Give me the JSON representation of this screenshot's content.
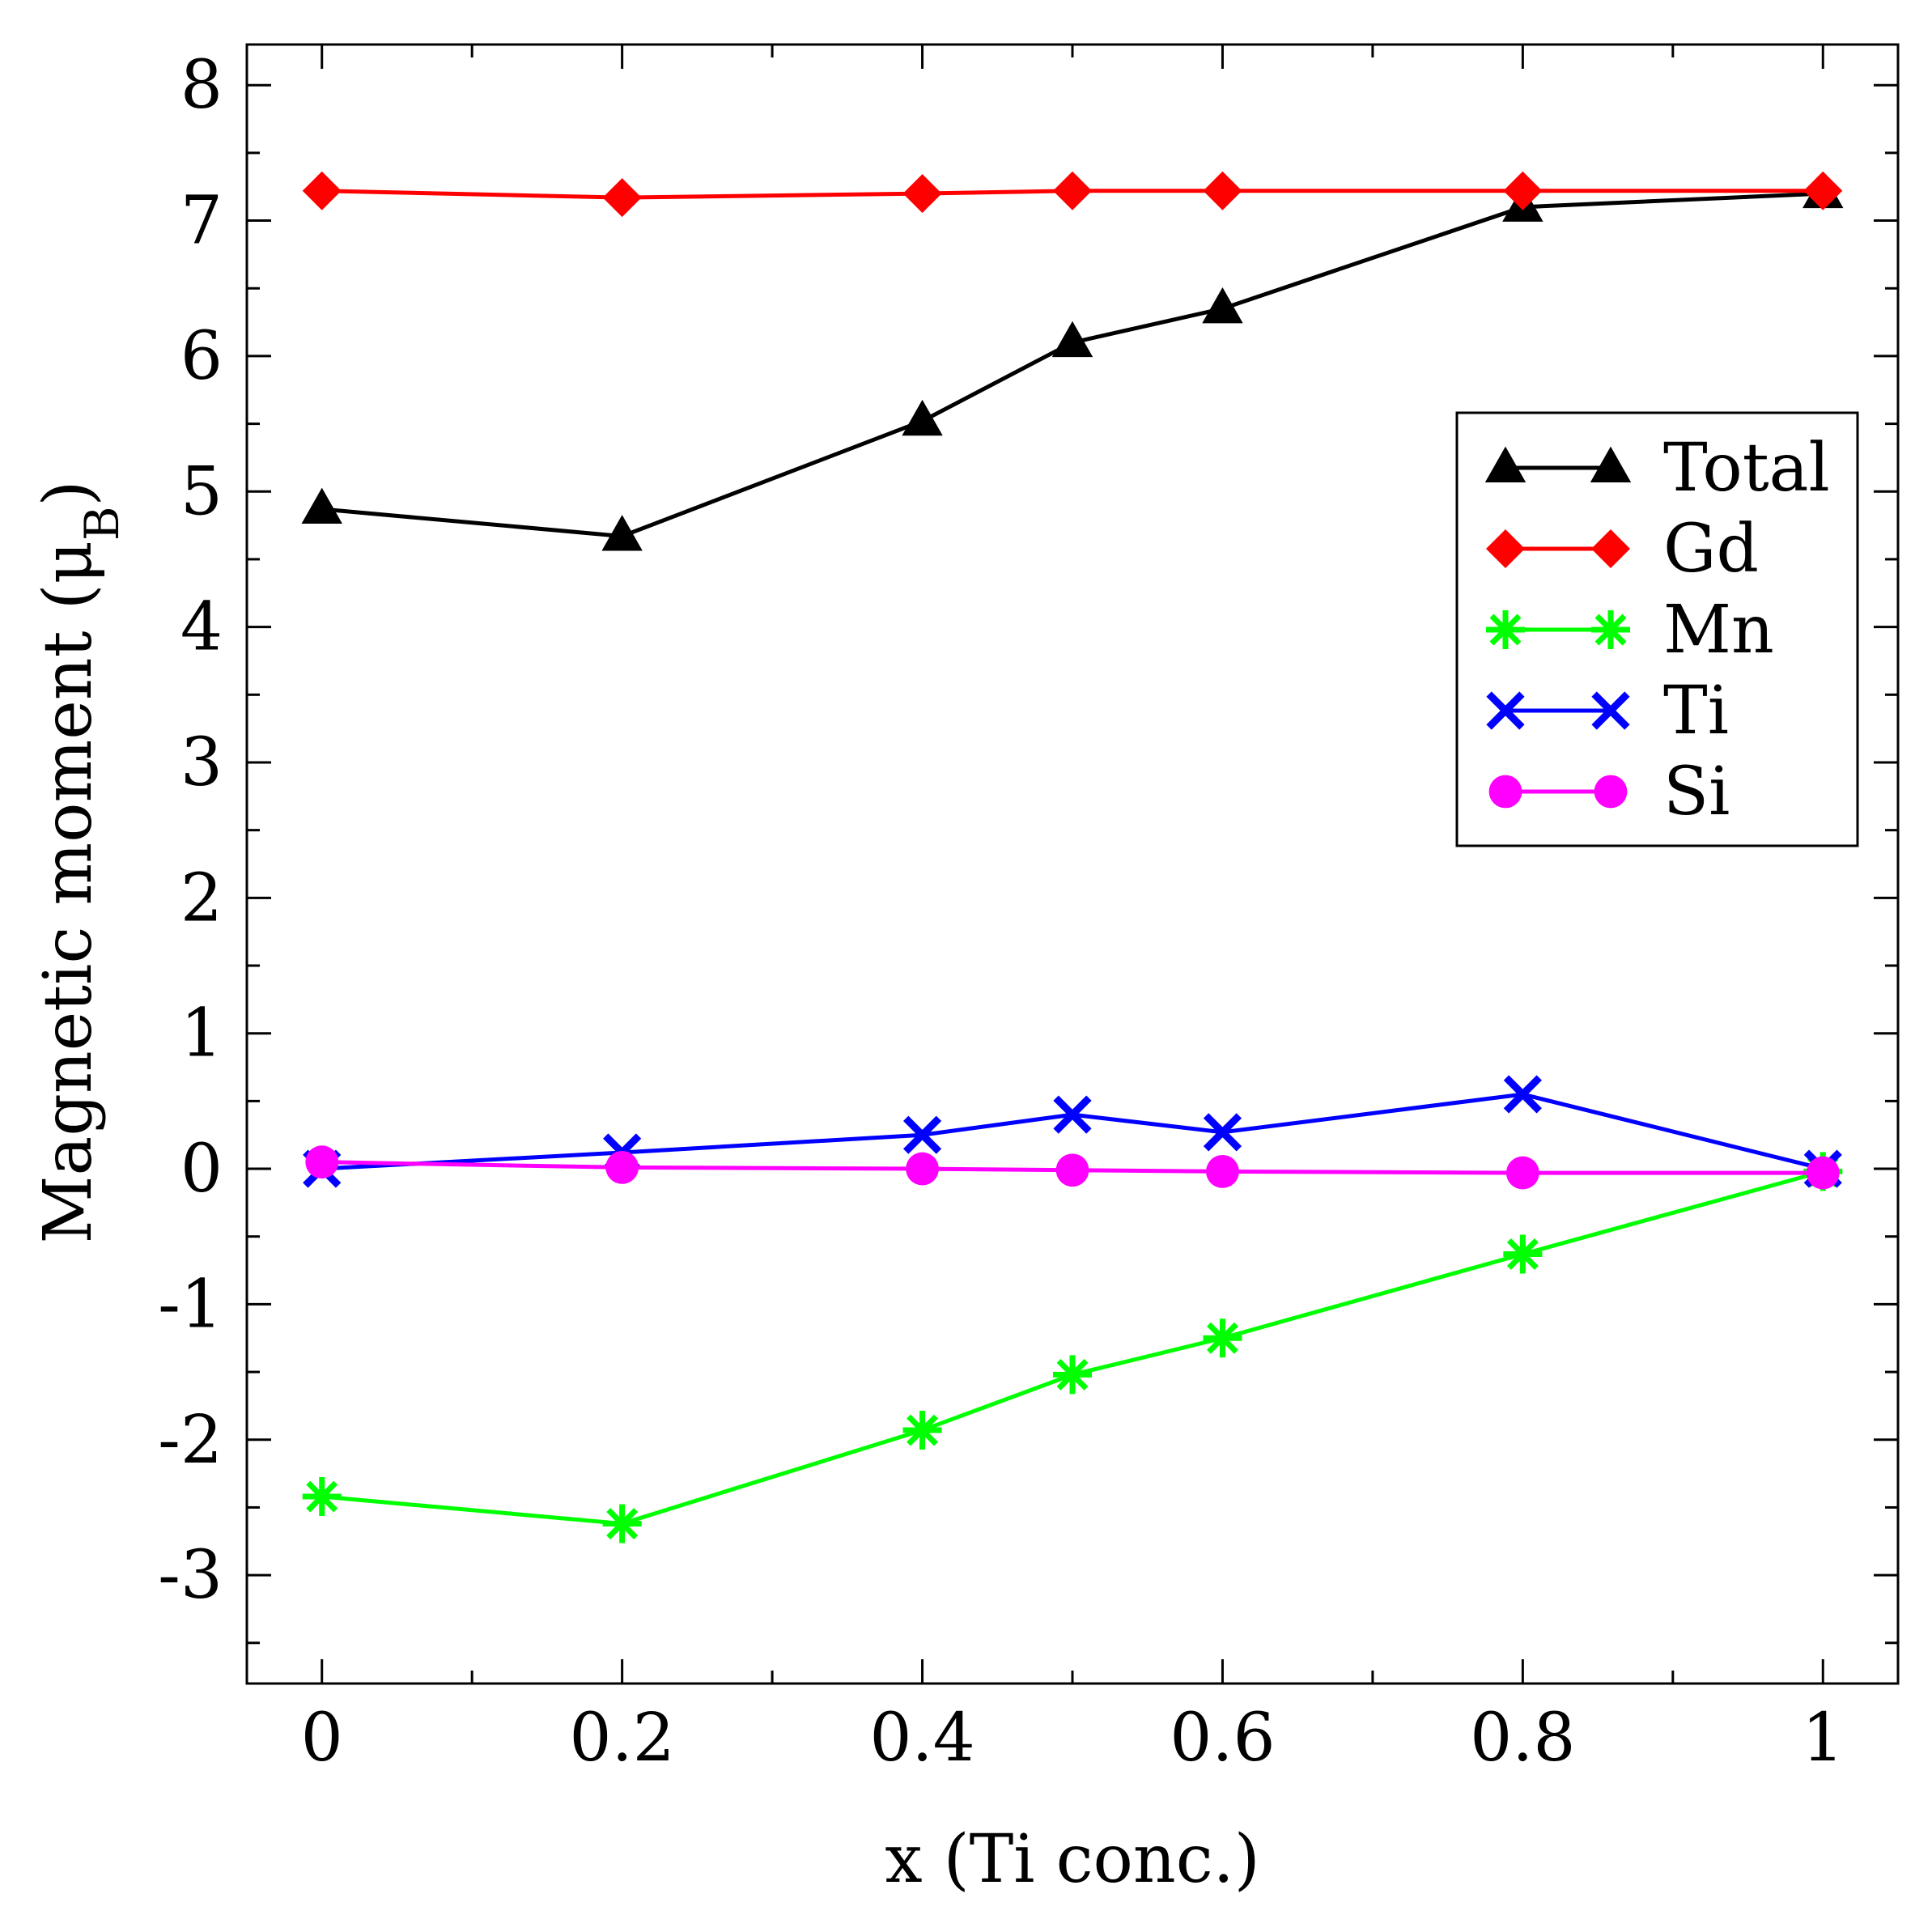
{
  "chart_data": {
    "type": "line",
    "title": "",
    "xlabel": "x (Ti conc.)",
    "ylabel_main": "Magnetic moment (μ",
    "ylabel_sub": "B",
    "ylabel_close": ")",
    "xlim": [
      -0.05,
      1.05
    ],
    "ylim": [
      -3.8,
      8.3
    ],
    "x_ticks": [
      0,
      0.2,
      0.4,
      0.6,
      0.8,
      1
    ],
    "x_tick_labels": [
      "0",
      "0.2",
      "0.4",
      "0.6",
      "0.8",
      "1"
    ],
    "x_minor_ticks": [
      0.1,
      0.3,
      0.5,
      0.7,
      0.9
    ],
    "y_ticks": [
      -3,
      -2,
      -1,
      0,
      1,
      2,
      3,
      4,
      5,
      6,
      7,
      8
    ],
    "y_tick_labels": [
      "-3",
      "-2",
      "-1",
      "0",
      "1",
      "2",
      "3",
      "4",
      "5",
      "6",
      "7",
      "8"
    ],
    "y_minor_ticks": [
      -3.5,
      -2.5,
      -1.5,
      -0.5,
      0.5,
      1.5,
      2.5,
      3.5,
      4.5,
      5.5,
      6.5,
      7.5
    ],
    "grid": false,
    "legend_position": "right",
    "x": [
      0,
      0.2,
      0.4,
      0.5,
      0.6,
      0.8,
      1
    ],
    "series": [
      {
        "name": "Total",
        "color": "#000000",
        "marker": "triangle",
        "values": [
          4.87,
          4.67,
          5.52,
          6.1,
          6.35,
          7.1,
          7.2
        ]
      },
      {
        "name": "Gd",
        "color": "#ff0000",
        "marker": "diamond",
        "values": [
          7.22,
          7.17,
          7.2,
          7.22,
          7.22,
          7.22,
          7.22
        ]
      },
      {
        "name": "Mn",
        "color": "#00ff00",
        "marker": "star",
        "values": [
          -2.42,
          -2.62,
          -1.93,
          -1.52,
          -1.25,
          -0.63,
          -0.02
        ]
      },
      {
        "name": "Ti",
        "color": "#0000ff",
        "marker": "x",
        "values": [
          0.0,
          0.12,
          0.25,
          0.4,
          0.27,
          0.55,
          0.0
        ]
      },
      {
        "name": "Si",
        "color": "#ff00ff",
        "marker": "circle",
        "values": [
          0.05,
          0.01,
          0.0,
          -0.01,
          -0.02,
          -0.03,
          -0.03
        ]
      }
    ]
  }
}
